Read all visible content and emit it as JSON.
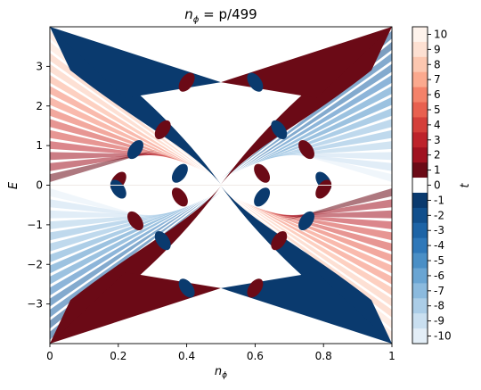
{
  "chart_data": {
    "type": "heatmap",
    "title": {
      "prefix": "n",
      "sub": "ϕ",
      "suffix": " = p/499"
    },
    "xlabel": {
      "main": "n",
      "sub": "ϕ"
    },
    "ylabel": "E",
    "xlim": [
      0,
      1
    ],
    "ylim": [
      -4,
      4
    ],
    "x_ticks": [
      0,
      0.2,
      0.4,
      0.6,
      0.8,
      1
    ],
    "x_tick_labels": [
      "0",
      "0.2",
      "0.4",
      "0.6",
      "0.8",
      "1"
    ],
    "y_ticks": [
      3,
      2,
      1,
      0,
      -1,
      -2,
      -3
    ],
    "y_tick_labels": [
      "3",
      "2",
      "1",
      "0",
      "−1",
      "−2",
      "−3"
    ],
    "grid": false,
    "colorbar": {
      "label": "t",
      "levels": [
        10,
        9,
        8,
        7,
        6,
        5,
        4,
        3,
        2,
        1,
        0,
        -1,
        -2,
        -3,
        -4,
        -5,
        -6,
        -7,
        -8,
        -9,
        -10
      ],
      "labels": [
        "10",
        "9",
        "8",
        "7",
        "6",
        "5",
        "4",
        "3",
        "2",
        "1",
        "0",
        "-1",
        "-2",
        "-3",
        "-4",
        "-5",
        "-6",
        "-7",
        "-8",
        "-9",
        "-10"
      ],
      "colors": [
        "#fef3ec",
        "#fde0d2",
        "#fcc7b0",
        "#fba98e",
        "#f4826a",
        "#e8604f",
        "#d43f3a",
        "#bd232b",
        "#a01220",
        "#6b0a16",
        "#ffffff",
        "#0a3a6e",
        "#114f8c",
        "#1d64a6",
        "#2f78b9",
        "#4a8fc6",
        "#6aa5d3",
        "#8bbade",
        "#abcde7",
        "#c9dff0",
        "#e3eef7"
      ]
    },
    "butterfly": {
      "upper_left_lobe_t": 1,
      "upper_right_lobe_t": 1,
      "main_left_lobe_t": -1,
      "main_right_lobe_t": -1
    }
  }
}
